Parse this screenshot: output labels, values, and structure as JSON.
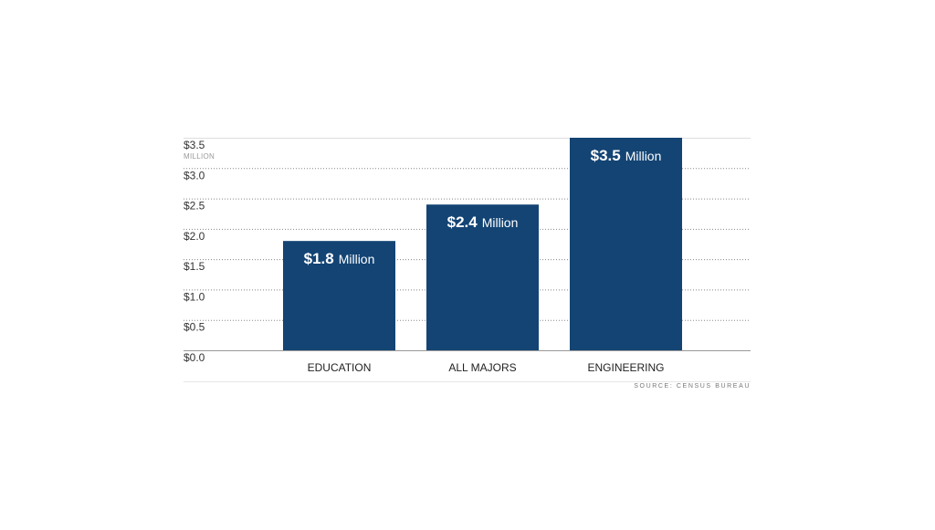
{
  "chart_data": {
    "type": "bar",
    "categories": [
      "EDUCATION",
      "ALL MAJORS",
      "ENGINEERING"
    ],
    "values": [
      1.8,
      2.4,
      3.5
    ],
    "value_labels": [
      {
        "amount": "$1.8",
        "unit": "Million"
      },
      {
        "amount": "$2.4",
        "unit": "Million"
      },
      {
        "amount": "$3.5",
        "unit": "Million"
      }
    ],
    "ylim": [
      0,
      3.5
    ],
    "yticks": [
      0,
      0.5,
      1.0,
      1.5,
      2.0,
      2.5,
      3.0,
      3.5
    ],
    "ytick_labels": [
      "$0.0",
      "$0.5",
      "$1.0",
      "$1.5",
      "$2.0",
      "$2.5",
      "$3.0",
      "$3.5"
    ],
    "y_unit_label": "MILLION",
    "grid": true,
    "bar_color": "#134474",
    "source": "SOURCE: CENSUS BUREAU"
  }
}
